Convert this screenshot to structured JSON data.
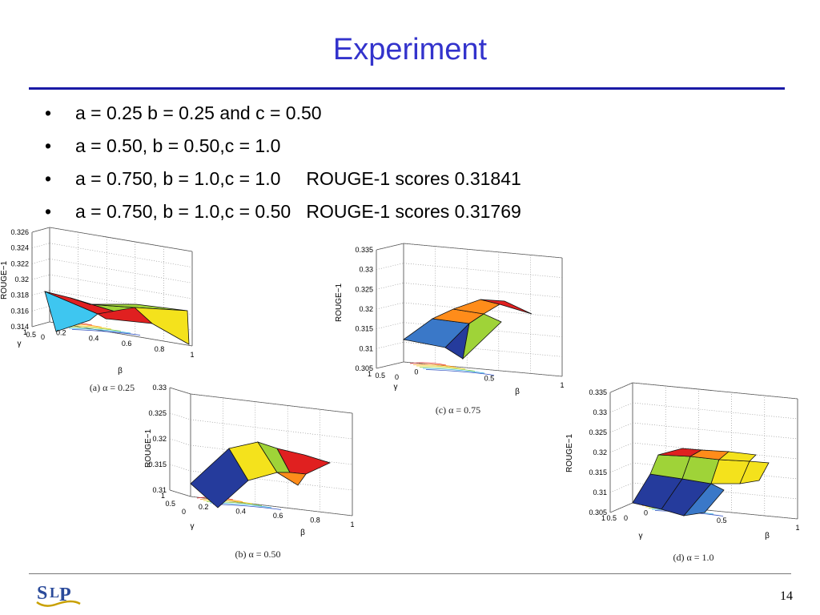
{
  "slide": {
    "title": "Experiment",
    "bullets": [
      "a = 0.25 b = 0.25 and c = 0.50",
      "a = 0.50, b = 0.50,c = 1.0",
      "a = 0.750, b = 1.0,c = 1.0     ROUGE-1 scores 0.31841",
      "a = 0.750, b = 1.0,c = 0.50   ROUGE-1 scores 0.31769"
    ],
    "bullet_glyph": "•",
    "page_number": "14",
    "logo_text": "SLP",
    "colors": {
      "title": "#3333cc",
      "rule": "#1a1aa6",
      "logo": "#2a4a9a",
      "logo_accent": "#c8a000"
    }
  },
  "chart_data": [
    {
      "type": "surface3d",
      "caption": "(a)  α = 0.25",
      "zlabel": "ROUGE−1",
      "xlabel": "β",
      "ylabel": "γ",
      "zlim": [
        0.314,
        0.326
      ],
      "zticks": [
        "0.326",
        "0.324",
        "0.322",
        "0.32",
        "0.318",
        "0.316",
        "0.314"
      ],
      "xticks": [
        "0.2",
        "0.4",
        "0.6",
        "0.8",
        "1"
      ],
      "yticks": [
        "1",
        "0.5",
        "0"
      ],
      "facet_colors": [
        "#3ec6f0",
        "#e02020",
        "#f4e21c",
        "#9fd338"
      ]
    },
    {
      "type": "surface3d",
      "caption": "(b)  α = 0.50",
      "zlabel": "ROUGE−1",
      "xlabel": "β",
      "ylabel": "γ",
      "zlim": [
        0.31,
        0.33
      ],
      "zticks": [
        "0.33",
        "0.325",
        "0.32",
        "0.315",
        "0.31"
      ],
      "xticks": [
        "0.2",
        "0.4",
        "0.6",
        "0.8",
        "1"
      ],
      "yticks": [
        "1",
        "0.5",
        "0"
      ],
      "facet_colors": [
        "#253b9c",
        "#f4e21c",
        "#9fd338",
        "#ff8c1a",
        "#e02020"
      ]
    },
    {
      "type": "surface3d",
      "caption": "(c)  α = 0.75",
      "zlabel": "ROUGE−1",
      "xlabel": "β",
      "ylabel": "γ",
      "zlim": [
        0.305,
        0.335
      ],
      "zticks": [
        "0.335",
        "0.33",
        "0.325",
        "0.32",
        "0.315",
        "0.31",
        "0.305"
      ],
      "xticks": [
        "0",
        "0.5",
        "1"
      ],
      "yticks": [
        "1",
        "0.5",
        "0"
      ],
      "facet_colors": [
        "#3a78c8",
        "#253b9c",
        "#ff8c1a",
        "#9fd338",
        "#e02020"
      ]
    },
    {
      "type": "surface3d",
      "caption": "(d)  α = 1.0",
      "zlabel": "ROUGE−1",
      "xlabel": "β",
      "ylabel": "γ",
      "zlim": [
        0.305,
        0.335
      ],
      "zticks": [
        "0.335",
        "0.33",
        "0.325",
        "0.32",
        "0.315",
        "0.31",
        "0.305"
      ],
      "xticks": [
        "0",
        "0.5",
        "1"
      ],
      "yticks": [
        "1",
        "0.5",
        "0"
      ],
      "facet_colors": [
        "#253b9c",
        "#3a78c8",
        "#9fd338",
        "#f4e21c",
        "#ff8c1a",
        "#e02020"
      ]
    }
  ]
}
